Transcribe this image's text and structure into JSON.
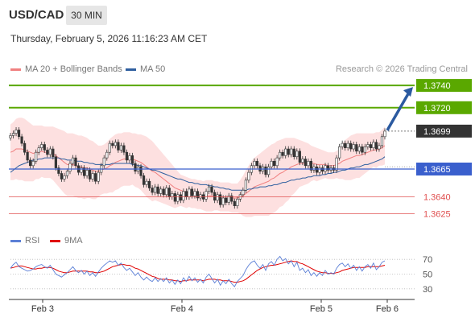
{
  "header": {
    "symbol": "USD/CAD",
    "timeframe": "30 MIN",
    "datetime": "Thursday, February 5, 2026 11:16:23 AM CET"
  },
  "legend": {
    "ma20_label": "MA 20 + Bollinger Bands",
    "ma50_label": "MA 50",
    "credit": "Research © 2026 Trading Central",
    "ma20_color": "#f08080",
    "ma50_color": "#2f5f9f"
  },
  "rsi_legend": {
    "rsi_label": "RSI",
    "ma9_label": "9MA",
    "rsi_color": "#5b7fd6",
    "ma9_color": "#e00000"
  },
  "colors": {
    "resistance": "#5aa800",
    "support": "#e05050",
    "pivot": "#3a5fcd",
    "current": "#333333",
    "arrow": "#2b5aa0",
    "band_fill": "#fde0e0",
    "candle": "#333333"
  },
  "chart_data": {
    "type": "candlestick",
    "ylim": [
      1.3613,
      1.3748
    ],
    "x_tick_labels": [
      "Feb 3",
      "Feb 4",
      "Feb 5",
      "Feb 6"
    ],
    "levels": [
      {
        "kind": "resistance",
        "value": 1.374,
        "label": "1.3740"
      },
      {
        "kind": "resistance",
        "value": 1.372,
        "label": "1.3720"
      },
      {
        "kind": "current",
        "value": 1.3699,
        "label": "1.3699"
      },
      {
        "kind": "pivot",
        "value": 1.3665,
        "label": "1.3665"
      },
      {
        "kind": "support",
        "value": 1.364,
        "label": "1.3640"
      },
      {
        "kind": "support",
        "value": 1.3625,
        "label": "1.3625"
      }
    ],
    "close": [
      1.3695,
      1.3697,
      1.37,
      1.3694,
      1.3688,
      1.368,
      1.3673,
      1.3668,
      1.3672,
      1.368,
      1.3684,
      1.3687,
      1.3682,
      1.3678,
      1.3683,
      1.3676,
      1.3666,
      1.3661,
      1.3656,
      1.3659,
      1.3663,
      1.367,
      1.3675,
      1.3668,
      1.3662,
      1.3666,
      1.3659,
      1.3664,
      1.3656,
      1.3661,
      1.3654,
      1.3662,
      1.3668,
      1.3675,
      1.368,
      1.3688,
      1.3686,
      1.3689,
      1.3682,
      1.3686,
      1.368,
      1.3673,
      1.3677,
      1.367,
      1.3663,
      1.3667,
      1.3659,
      1.3651,
      1.3654,
      1.3648,
      1.3644,
      1.3649,
      1.3643,
      1.3647,
      1.3642,
      1.3648,
      1.364,
      1.3643,
      1.3636,
      1.3642,
      1.3637,
      1.3645,
      1.364,
      1.3647,
      1.3641,
      1.3645,
      1.3639,
      1.3642,
      1.3638,
      1.3645,
      1.3649,
      1.3644,
      1.3637,
      1.3642,
      1.3633,
      1.3639,
      1.3635,
      1.3641,
      1.3636,
      1.3632,
      1.3638,
      1.3642,
      1.3646,
      1.3655,
      1.3662,
      1.3668,
      1.3672,
      1.3668,
      1.3663,
      1.3667,
      1.366,
      1.3667,
      1.3672,
      1.3668,
      1.3675,
      1.368,
      1.3677,
      1.3683,
      1.3678,
      1.3683,
      1.3676,
      1.3681,
      1.3671,
      1.3674,
      1.3668,
      1.3672,
      1.3664,
      1.3667,
      1.3662,
      1.3666,
      1.3663,
      1.3668,
      1.3664,
      1.3666,
      1.3664,
      1.3675,
      1.3685,
      1.3688,
      1.3684,
      1.3688,
      1.3683,
      1.3687,
      1.3681,
      1.3685,
      1.368,
      1.3685,
      1.3687,
      1.3684,
      1.3689,
      1.3683,
      1.3686,
      1.3694,
      1.3699
    ],
    "ma20": [
      1.368,
      1.3681,
      1.3683,
      1.3683,
      1.3683,
      1.3682,
      1.3681,
      1.368,
      1.3679,
      1.368,
      1.368,
      1.3681,
      1.368,
      1.368,
      1.368,
      1.3679,
      1.3677,
      1.3675,
      1.3673,
      1.3671,
      1.3669,
      1.3669,
      1.3669,
      1.3668,
      1.3667,
      1.3667,
      1.3666,
      1.3666,
      1.3665,
      1.3664,
      1.3663,
      1.3663,
      1.3664,
      1.3665,
      1.3666,
      1.3668,
      1.3669,
      1.3671,
      1.3672,
      1.3673,
      1.3674,
      1.3674,
      1.3674,
      1.3674,
      1.3673,
      1.3672,
      1.3671,
      1.3669,
      1.3667,
      1.3665,
      1.3663,
      1.3662,
      1.366,
      1.3658,
      1.3656,
      1.3654,
      1.3652,
      1.365,
      1.3648,
      1.3647,
      1.3646,
      1.3645,
      1.3644,
      1.3644,
      1.3643,
      1.3643,
      1.3642,
      1.3642,
      1.3641,
      1.3641,
      1.3641,
      1.3641,
      1.3641,
      1.3641,
      1.364,
      1.364,
      1.364,
      1.364,
      1.3639,
      1.3639,
      1.3639,
      1.364,
      1.3641,
      1.3643,
      1.3645,
      1.3647,
      1.3649,
      1.365,
      1.3651,
      1.3652,
      1.3653,
      1.3654,
      1.3656,
      1.3657,
      1.3659,
      1.3661,
      1.3662,
      1.3664,
      1.3665,
      1.3667,
      1.3668,
      1.3669,
      1.367,
      1.367,
      1.367,
      1.367,
      1.367,
      1.367,
      1.3669,
      1.3669,
      1.3669,
      1.3669,
      1.3668,
      1.3668,
      1.3668,
      1.3669,
      1.367,
      1.3672,
      1.3673,
      1.3674,
      1.3675,
      1.3676,
      1.3677,
      1.3677,
      1.3678,
      1.3679,
      1.368,
      1.3681,
      1.3682,
      1.3682,
      1.3683,
      1.3684,
      1.3686
    ],
    "ma50": [
      1.3662,
      1.3664,
      1.3666,
      1.3668,
      1.3669,
      1.367,
      1.3671,
      1.3672,
      1.3673,
      1.3673,
      1.3674,
      1.3674,
      1.3675,
      1.3675,
      1.3675,
      1.3675,
      1.3675,
      1.3675,
      1.3674,
      1.3674,
      1.3673,
      1.3673,
      1.3673,
      1.3672,
      1.3672,
      1.3672,
      1.3671,
      1.3671,
      1.367,
      1.367,
      1.3669,
      1.3669,
      1.3669,
      1.3669,
      1.3669,
      1.3669,
      1.367,
      1.367,
      1.367,
      1.367,
      1.367,
      1.367,
      1.367,
      1.3669,
      1.3669,
      1.3668,
      1.3668,
      1.3667,
      1.3666,
      1.3665,
      1.3664,
      1.3664,
      1.3663,
      1.3662,
      1.3661,
      1.366,
      1.3659,
      1.3658,
      1.3657,
      1.3656,
      1.3656,
      1.3655,
      1.3654,
      1.3653,
      1.3653,
      1.3652,
      1.3652,
      1.3651,
      1.3651,
      1.3651,
      1.365,
      1.365,
      1.3649,
      1.3649,
      1.3648,
      1.3648,
      1.3647,
      1.3647,
      1.3646,
      1.3646,
      1.3646,
      1.3646,
      1.3646,
      1.3646,
      1.3647,
      1.3647,
      1.3648,
      1.3648,
      1.3649,
      1.3649,
      1.3649,
      1.365,
      1.365,
      1.3651,
      1.3651,
      1.3652,
      1.3653,
      1.3653,
      1.3654,
      1.3655,
      1.3655,
      1.3656,
      1.3656,
      1.3657,
      1.3657,
      1.3658,
      1.3658,
      1.3659,
      1.3659,
      1.3659,
      1.366,
      1.366,
      1.3661,
      1.3661,
      1.3662,
      1.3662,
      1.3663,
      1.3664,
      1.3664,
      1.3665,
      1.3666,
      1.3666,
      1.3667,
      1.3667,
      1.3668,
      1.3669,
      1.3669,
      1.367,
      1.3671,
      1.3672,
      1.3673,
      1.3674,
      1.3676
    ],
    "bb_upper": [
      1.3705,
      1.3707,
      1.371,
      1.3711,
      1.3711,
      1.371,
      1.3708,
      1.3706,
      1.3704,
      1.3704,
      1.3704,
      1.3704,
      1.3703,
      1.3703,
      1.3703,
      1.3703,
      1.3702,
      1.3701,
      1.37,
      1.3699,
      1.3697,
      1.3697,
      1.3697,
      1.3696,
      1.3695,
      1.3695,
      1.3694,
      1.3693,
      1.3691,
      1.369,
      1.3688,
      1.3686,
      1.3686,
      1.3687,
      1.3689,
      1.3692,
      1.3694,
      1.3696,
      1.3697,
      1.3697,
      1.3698,
      1.3698,
      1.3698,
      1.3697,
      1.3697,
      1.3696,
      1.3696,
      1.3695,
      1.3694,
      1.3692,
      1.369,
      1.3687,
      1.3684,
      1.3681,
      1.3678,
      1.3675,
      1.3672,
      1.3669,
      1.3666,
      1.3663,
      1.366,
      1.3659,
      1.3658,
      1.3657,
      1.3656,
      1.3656,
      1.3655,
      1.3655,
      1.3654,
      1.3655,
      1.3655,
      1.3655,
      1.3654,
      1.3654,
      1.3653,
      1.3653,
      1.3653,
      1.3653,
      1.3652,
      1.3652,
      1.3652,
      1.3655,
      1.3659,
      1.3664,
      1.3668,
      1.3672,
      1.3675,
      1.3677,
      1.3679,
      1.3681,
      1.3683,
      1.3685,
      1.3687,
      1.3688,
      1.369,
      1.3691,
      1.3692,
      1.3693,
      1.3693,
      1.3693,
      1.3693,
      1.3692,
      1.3691,
      1.369,
      1.3689,
      1.3688,
      1.3686,
      1.3685,
      1.3684,
      1.3683,
      1.3682,
      1.3681,
      1.368,
      1.368,
      1.368,
      1.3681,
      1.3684,
      1.3688,
      1.3691,
      1.3693,
      1.3695,
      1.3696,
      1.3697,
      1.3697,
      1.3697,
      1.3697,
      1.3697,
      1.3697,
      1.3697,
      1.3698,
      1.3698,
      1.37,
      1.3703
    ],
    "bb_lower": [
      1.3655,
      1.3655,
      1.3656,
      1.3655,
      1.3655,
      1.3654,
      1.3654,
      1.3654,
      1.3654,
      1.3656,
      1.3656,
      1.3658,
      1.3657,
      1.3657,
      1.3657,
      1.3655,
      1.3652,
      1.3649,
      1.3646,
      1.3643,
      1.3641,
      1.3641,
      1.3641,
      1.364,
      1.3639,
      1.3639,
      1.3638,
      1.3639,
      1.3639,
      1.3638,
      1.3638,
      1.364,
      1.3642,
      1.3643,
      1.3643,
      1.3644,
      1.3644,
      1.3646,
      1.3647,
      1.3649,
      1.365,
      1.365,
      1.365,
      1.3651,
      1.3649,
      1.3648,
      1.3646,
      1.3643,
      1.364,
      1.3638,
      1.3636,
      1.3637,
      1.3636,
      1.3635,
      1.3634,
      1.3633,
      1.3632,
      1.3631,
      1.363,
      1.3631,
      1.3632,
      1.3631,
      1.363,
      1.3631,
      1.363,
      1.363,
      1.3629,
      1.3629,
      1.3628,
      1.3627,
      1.3627,
      1.3627,
      1.3628,
      1.3628,
      1.3627,
      1.3627,
      1.3627,
      1.3627,
      1.3626,
      1.3626,
      1.3626,
      1.3625,
      1.3623,
      1.3622,
      1.3622,
      1.3622,
      1.3623,
      1.3623,
      1.3623,
      1.3623,
      1.3623,
      1.3623,
      1.3625,
      1.3626,
      1.3628,
      1.3631,
      1.3632,
      1.3635,
      1.3637,
      1.3641,
      1.3643,
      1.3646,
      1.3649,
      1.365,
      1.3651,
      1.3652,
      1.3654,
      1.3655,
      1.3654,
      1.3655,
      1.3656,
      1.3657,
      1.3656,
      1.3656,
      1.3656,
      1.3657,
      1.3656,
      1.3656,
      1.3655,
      1.3655,
      1.3655,
      1.3656,
      1.3657,
      1.3657,
      1.3659,
      1.3661,
      1.3663,
      1.3665,
      1.3667,
      1.3666,
      1.3668,
      1.3668,
      1.3669
    ],
    "rsi": {
      "ylim": [
        20,
        80
      ],
      "levels": [
        70,
        50,
        30
      ],
      "rsi": [
        58,
        63,
        66,
        60,
        58,
        56,
        54,
        55,
        57,
        60,
        62,
        63,
        60,
        58,
        62,
        56,
        50,
        48,
        46,
        49,
        52,
        56,
        60,
        55,
        52,
        55,
        50,
        54,
        48,
        52,
        47,
        53,
        58,
        62,
        65,
        68,
        66,
        68,
        62,
        65,
        59,
        55,
        58,
        53,
        48,
        52,
        46,
        42,
        46,
        42,
        40,
        45,
        40,
        44,
        40,
        45,
        38,
        42,
        36,
        42,
        37,
        45,
        40,
        47,
        41,
        45,
        39,
        43,
        38,
        46,
        50,
        44,
        38,
        43,
        35,
        41,
        37,
        43,
        37,
        33,
        40,
        44,
        48,
        56,
        62,
        66,
        68,
        62,
        58,
        63,
        55,
        64,
        67,
        62,
        70,
        74,
        68,
        71,
        64,
        68,
        60,
        66,
        55,
        58,
        52,
        56,
        48,
        52,
        47,
        52,
        48,
        55,
        50,
        52,
        50,
        58,
        63,
        65,
        60,
        64,
        58,
        62,
        55,
        60,
        54,
        60,
        63,
        58,
        65,
        56,
        60,
        66,
        68
      ],
      "ma9": [
        58,
        59,
        60,
        61,
        61,
        60,
        59,
        58,
        57,
        57,
        58,
        58,
        59,
        59,
        59,
        58,
        56,
        54,
        53,
        52,
        52,
        53,
        54,
        54,
        54,
        54,
        54,
        54,
        53,
        53,
        52,
        52,
        53,
        54,
        56,
        58,
        60,
        61,
        62,
        63,
        63,
        62,
        62,
        60,
        58,
        57,
        55,
        53,
        51,
        49,
        47,
        46,
        44,
        43,
        43,
        43,
        42,
        42,
        41,
        41,
        40,
        41,
        41,
        42,
        42,
        42,
        42,
        42,
        41,
        42,
        43,
        43,
        43,
        42,
        42,
        41,
        41,
        41,
        40,
        39,
        39,
        40,
        41,
        43,
        46,
        49,
        52,
        55,
        57,
        59,
        60,
        61,
        62,
        62,
        63,
        64,
        65,
        66,
        67,
        68,
        67,
        67,
        65,
        64,
        62,
        60,
        58,
        56,
        54,
        53,
        52,
        52,
        51,
        51,
        51,
        52,
        53,
        55,
        56,
        57,
        58,
        59,
        59,
        59,
        59,
        59,
        60,
        60,
        60,
        60,
        60,
        61,
        62
      ]
    }
  }
}
